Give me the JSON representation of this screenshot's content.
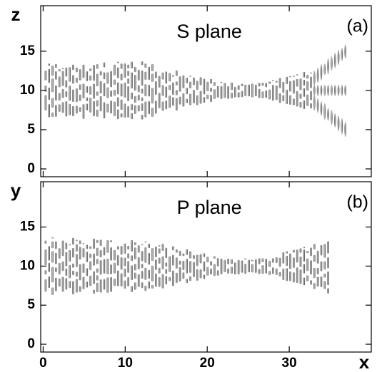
{
  "chart_data": [
    {
      "type": "surface",
      "title": "S plane",
      "annotation": "(a)",
      "ylabel": "z",
      "xlim": [
        -0.3,
        40
      ],
      "ylim": [
        -1,
        20.8
      ],
      "xticks": [
        0,
        10,
        20,
        30
      ],
      "yticks": [
        0,
        5,
        10,
        15
      ],
      "show_xtick_labels": false,
      "variant": "split"
    },
    {
      "type": "surface",
      "title": "P plane",
      "annotation": "(b)",
      "ylabel": "y",
      "xlabel": "x",
      "xlim": [
        -0.3,
        40
      ],
      "ylim": [
        -1,
        20.8
      ],
      "xticks": [
        0,
        10,
        20,
        30
      ],
      "yticks": [
        0,
        5,
        10,
        15
      ],
      "show_xtick_labels": true,
      "variant": "plain"
    }
  ]
}
